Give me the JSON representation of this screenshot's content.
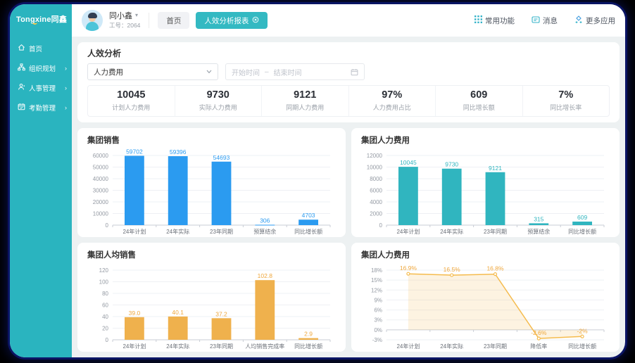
{
  "colors": {
    "sidebar_teal": "#2AB4BF",
    "active_tab_teal": "#33B9C2",
    "bar_blue": "#2B9BF0",
    "bar_teal": "#30B5BF",
    "bar_orange": "#EFB14D",
    "line_orange": "#F5BB4D",
    "logo_smile_yellow": "#F7C948"
  },
  "sidebar": {
    "logo_text": "Tongxine同鑫",
    "items": [
      {
        "label": "首页",
        "icon": "home-icon",
        "has_submenu": false
      },
      {
        "label": "组织规划",
        "icon": "org-icon",
        "has_submenu": true
      },
      {
        "label": "人事管理",
        "icon": "person-icon",
        "has_submenu": true
      },
      {
        "label": "考勤管理",
        "icon": "attendance-calendar-icon",
        "has_submenu": true
      }
    ],
    "submenu_arrow": "›"
  },
  "header": {
    "user": {
      "name": "同小鑫",
      "caret": "▾",
      "employee_id": "工号：2064"
    },
    "tabs": [
      {
        "label": "首页",
        "active": false
      },
      {
        "label": "人效分析报表",
        "active": true,
        "closable": true
      }
    ],
    "actions": [
      {
        "label": "常用功能",
        "icon": "grid-icon"
      },
      {
        "label": "消息",
        "icon": "message-icon"
      },
      {
        "label": "更多应用",
        "icon": "more-apps-icon"
      }
    ]
  },
  "filters": {
    "section_title": "人效分析",
    "metric_select": {
      "value": "人力费用",
      "caret": "⌄"
    },
    "date_range": {
      "start_placeholder": "开始时间",
      "separator": "–",
      "end_placeholder": "结束时间"
    }
  },
  "kpis": [
    {
      "value": "10045",
      "label": "计划人力费用"
    },
    {
      "value": "9730",
      "label": "实际人力费用"
    },
    {
      "value": "9121",
      "label": "同期人力费用"
    },
    {
      "value": "97%",
      "label": "人力费用占比"
    },
    {
      "value": "609",
      "label": "同比增长额"
    },
    {
      "value": "7%",
      "label": "同比增长率"
    }
  ],
  "chart_data": [
    {
      "name": "group-sales",
      "title": "集团销售",
      "type": "bar",
      "color": "#2B9BF0",
      "label_color": "#2B9BF0",
      "categories": [
        "24年计划",
        "24年实际",
        "23年同期",
        "预算结余",
        "同比增长额"
      ],
      "values": [
        59702,
        59396,
        54693,
        306,
        4703
      ],
      "value_labels": [
        "59702",
        "59396",
        "54693",
        "306",
        "4703"
      ],
      "y_min": 0,
      "y_max": 60000,
      "y_step": 10000,
      "y_suffix": "",
      "grid": true,
      "legend": "none"
    },
    {
      "name": "group-hr-cost",
      "title": "集团人力费用",
      "type": "bar",
      "color": "#30B5BF",
      "label_color": "#30B5BF",
      "categories": [
        "24年计划",
        "24年实际",
        "23年同期",
        "预算结余",
        "同比增长额"
      ],
      "values": [
        10045,
        9730,
        9121,
        315,
        609
      ],
      "value_labels": [
        "10045",
        "9730",
        "9121",
        "315",
        "609"
      ],
      "y_min": 0,
      "y_max": 12000,
      "y_step": 2000,
      "y_suffix": "",
      "grid": true,
      "legend": "none"
    },
    {
      "name": "group-per-capita-sales",
      "title": "集团人均销售",
      "type": "bar",
      "color": "#EFB14D",
      "label_color": "#EFA73C",
      "categories": [
        "24年计划",
        "24年实际",
        "23年同期",
        "人均销售完成率",
        "同比增长额"
      ],
      "values": [
        39.0,
        40.1,
        37.2,
        102.8,
        2.9
      ],
      "value_labels": [
        "39.0",
        "40.1",
        "37.2",
        "102.8",
        "2.9"
      ],
      "y_min": 0,
      "y_max": 120,
      "y_step": 20,
      "y_suffix": "",
      "grid": true,
      "legend": "none"
    },
    {
      "name": "group-hr-cost-rate",
      "title": "集团人力费用",
      "type": "line",
      "color": "#F5BB4D",
      "label_color": "#EFA73C",
      "area_fill": "rgba(246,189,86,0.18)",
      "categories": [
        "24年计划",
        "24年实际",
        "23年同期",
        "降低率",
        "同比增长额"
      ],
      "values": [
        16.9,
        16.5,
        16.8,
        -2.6,
        -2
      ],
      "value_labels": [
        "16.9%",
        "16.5%",
        "16.8%",
        "-2.6%",
        "-2%"
      ],
      "y_min": -3,
      "y_max": 18,
      "y_step": 3,
      "y_suffix": "%",
      "grid": true,
      "legend": "none"
    }
  ]
}
